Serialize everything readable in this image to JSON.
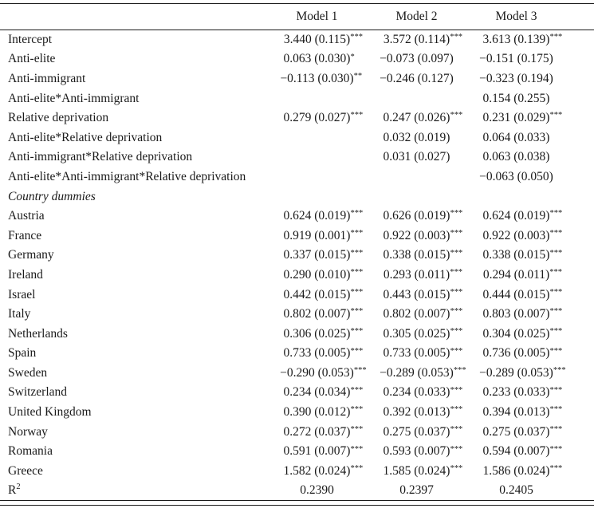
{
  "header": {
    "models": [
      "Model 1",
      "Model 2",
      "Model 3"
    ]
  },
  "table": {
    "rows": [
      {
        "label": "Intercept",
        "cells": [
          {
            "t": "3.440 (0.115)",
            "s": "***"
          },
          {
            "t": "3.572 (0.114)",
            "s": "***"
          },
          {
            "t": "3.613 (0.139)",
            "s": "***"
          }
        ]
      },
      {
        "label": "Anti-elite",
        "cells": [
          {
            "t": "0.063 (0.030)",
            "s": "*"
          },
          {
            "t": "−0.073 (0.097)",
            "s": ""
          },
          {
            "t": "−0.151 (0.175)",
            "s": ""
          }
        ]
      },
      {
        "label": "Anti-immigrant",
        "cells": [
          {
            "t": "−0.113 (0.030)",
            "s": "**"
          },
          {
            "t": "−0.246 (0.127)",
            "s": ""
          },
          {
            "t": "−0.323 (0.194)",
            "s": ""
          }
        ]
      },
      {
        "label": "Anti-elite*Anti-immigrant",
        "cells": [
          {
            "t": "",
            "s": ""
          },
          {
            "t": "",
            "s": ""
          },
          {
            "t": "0.154 (0.255)",
            "s": ""
          }
        ]
      },
      {
        "label": "Relative deprivation",
        "cells": [
          {
            "t": "0.279 (0.027)",
            "s": "***"
          },
          {
            "t": "0.247 (0.026)",
            "s": "***"
          },
          {
            "t": "0.231 (0.029)",
            "s": "***"
          }
        ]
      },
      {
        "label": "Anti-elite*Relative deprivation",
        "cells": [
          {
            "t": "",
            "s": ""
          },
          {
            "t": "0.032 (0.019)",
            "s": ""
          },
          {
            "t": "0.064 (0.033)",
            "s": ""
          }
        ]
      },
      {
        "label": "Anti-immigrant*Relative deprivation",
        "cells": [
          {
            "t": "",
            "s": ""
          },
          {
            "t": "0.031 (0.027)",
            "s": ""
          },
          {
            "t": "0.063 (0.038)",
            "s": ""
          }
        ]
      },
      {
        "label": "Anti-elite*Anti-immigrant*Relative deprivation",
        "cells": [
          {
            "t": "",
            "s": ""
          },
          {
            "t": "",
            "s": ""
          },
          {
            "t": "−0.063 (0.050)",
            "s": ""
          }
        ]
      },
      {
        "label": "Country dummies",
        "section": true,
        "cells": [
          {
            "t": "",
            "s": ""
          },
          {
            "t": "",
            "s": ""
          },
          {
            "t": "",
            "s": ""
          }
        ]
      },
      {
        "label": "Austria",
        "cells": [
          {
            "t": "0.624 (0.019)",
            "s": "***"
          },
          {
            "t": "0.626 (0.019)",
            "s": "***"
          },
          {
            "t": "0.624 (0.019)",
            "s": "***"
          }
        ]
      },
      {
        "label": "France",
        "cells": [
          {
            "t": "0.919 (0.001)",
            "s": "***"
          },
          {
            "t": "0.922 (0.003)",
            "s": "***"
          },
          {
            "t": "0.922 (0.003)",
            "s": "***"
          }
        ]
      },
      {
        "label": "Germany",
        "cells": [
          {
            "t": "0.337 (0.015)",
            "s": "***"
          },
          {
            "t": "0.338 (0.015)",
            "s": "***"
          },
          {
            "t": "0.338 (0.015)",
            "s": "***"
          }
        ]
      },
      {
        "label": "Ireland",
        "cells": [
          {
            "t": "0.290 (0.010)",
            "s": "***"
          },
          {
            "t": "0.293 (0.011)",
            "s": "***"
          },
          {
            "t": "0.294 (0.011)",
            "s": "***"
          }
        ]
      },
      {
        "label": "Israel",
        "cells": [
          {
            "t": "0.442 (0.015)",
            "s": "***"
          },
          {
            "t": "0.443 (0.015)",
            "s": "***"
          },
          {
            "t": "0.444 (0.015)",
            "s": "***"
          }
        ]
      },
      {
        "label": "Italy",
        "cells": [
          {
            "t": "0.802 (0.007)",
            "s": "***"
          },
          {
            "t": "0.802 (0.007)",
            "s": "***"
          },
          {
            "t": "0.803 (0.007)",
            "s": "***"
          }
        ]
      },
      {
        "label": "Netherlands",
        "cells": [
          {
            "t": "0.306 (0.025)",
            "s": "***"
          },
          {
            "t": "0.305 (0.025)",
            "s": "***"
          },
          {
            "t": "0.304 (0.025)",
            "s": "***"
          }
        ]
      },
      {
        "label": "Spain",
        "cells": [
          {
            "t": "0.733 (0.005)",
            "s": "***"
          },
          {
            "t": "0.733 (0.005)",
            "s": "***"
          },
          {
            "t": "0.736 (0.005)",
            "s": "***"
          }
        ]
      },
      {
        "label": "Sweden",
        "cells": [
          {
            "t": "−0.290 (0.053)",
            "s": "***"
          },
          {
            "t": "−0.289 (0.053)",
            "s": "***"
          },
          {
            "t": "−0.289 (0.053)",
            "s": "***"
          }
        ]
      },
      {
        "label": "Switzerland",
        "cells": [
          {
            "t": "0.234 (0.034)",
            "s": "***"
          },
          {
            "t": "0.234 (0.033)",
            "s": "***"
          },
          {
            "t": "0.233 (0.033)",
            "s": "***"
          }
        ]
      },
      {
        "label": "United Kingdom",
        "cells": [
          {
            "t": "0.390 (0.012)",
            "s": "***"
          },
          {
            "t": "0.392 (0.013)",
            "s": "***"
          },
          {
            "t": "0.394 (0.013)",
            "s": "***"
          }
        ]
      },
      {
        "label": "Norway",
        "cells": [
          {
            "t": "0.272 (0.037)",
            "s": "***"
          },
          {
            "t": "0.275 (0.037)",
            "s": "***"
          },
          {
            "t": "0.275 (0.037)",
            "s": "***"
          }
        ]
      },
      {
        "label": "Romania",
        "cells": [
          {
            "t": "0.591 (0.007)",
            "s": "***"
          },
          {
            "t": "0.593 (0.007)",
            "s": "***"
          },
          {
            "t": "0.594 (0.007)",
            "s": "***"
          }
        ]
      },
      {
        "label": "Greece",
        "cells": [
          {
            "t": "1.582 (0.024)",
            "s": "***"
          },
          {
            "t": "1.585 (0.024)",
            "s": "***"
          },
          {
            "t": "1.586 (0.024)",
            "s": "***"
          }
        ]
      },
      {
        "label": "R",
        "label_sup": "2",
        "cells": [
          {
            "t": "0.2390",
            "s": ""
          },
          {
            "t": "0.2397",
            "s": ""
          },
          {
            "t": "0.2405",
            "s": ""
          }
        ]
      }
    ]
  }
}
